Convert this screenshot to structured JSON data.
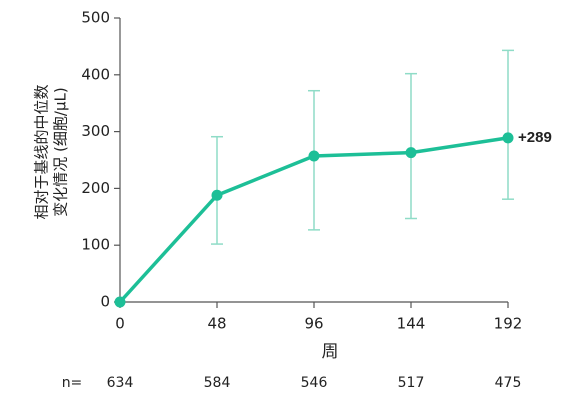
{
  "chart_data": {
    "type": "line",
    "y_label_lines": [
      "相对于基线的中位数",
      "变化情况 (细胞/μL)"
    ],
    "x_label": "周",
    "x": [
      0,
      48,
      96,
      144,
      192
    ],
    "xlim": [
      0,
      192
    ],
    "xticks": [
      0,
      48,
      96,
      144,
      192
    ],
    "ylim": [
      0,
      500
    ],
    "yticks": [
      0,
      100,
      200,
      300,
      400,
      500
    ],
    "series": [
      {
        "color": "#1dbf97",
        "error_color": "#8fdcc7",
        "values": [
          0,
          188,
          257,
          263,
          289
        ],
        "lower": [
          0,
          102,
          127,
          147,
          181
        ],
        "upper": [
          0,
          291,
          372,
          402,
          443
        ],
        "value_labels": [
          null,
          null,
          null,
          null,
          "+289"
        ]
      }
    ],
    "n_label": "n=",
    "n_counts": [
      634,
      584,
      546,
      517,
      475
    ]
  }
}
